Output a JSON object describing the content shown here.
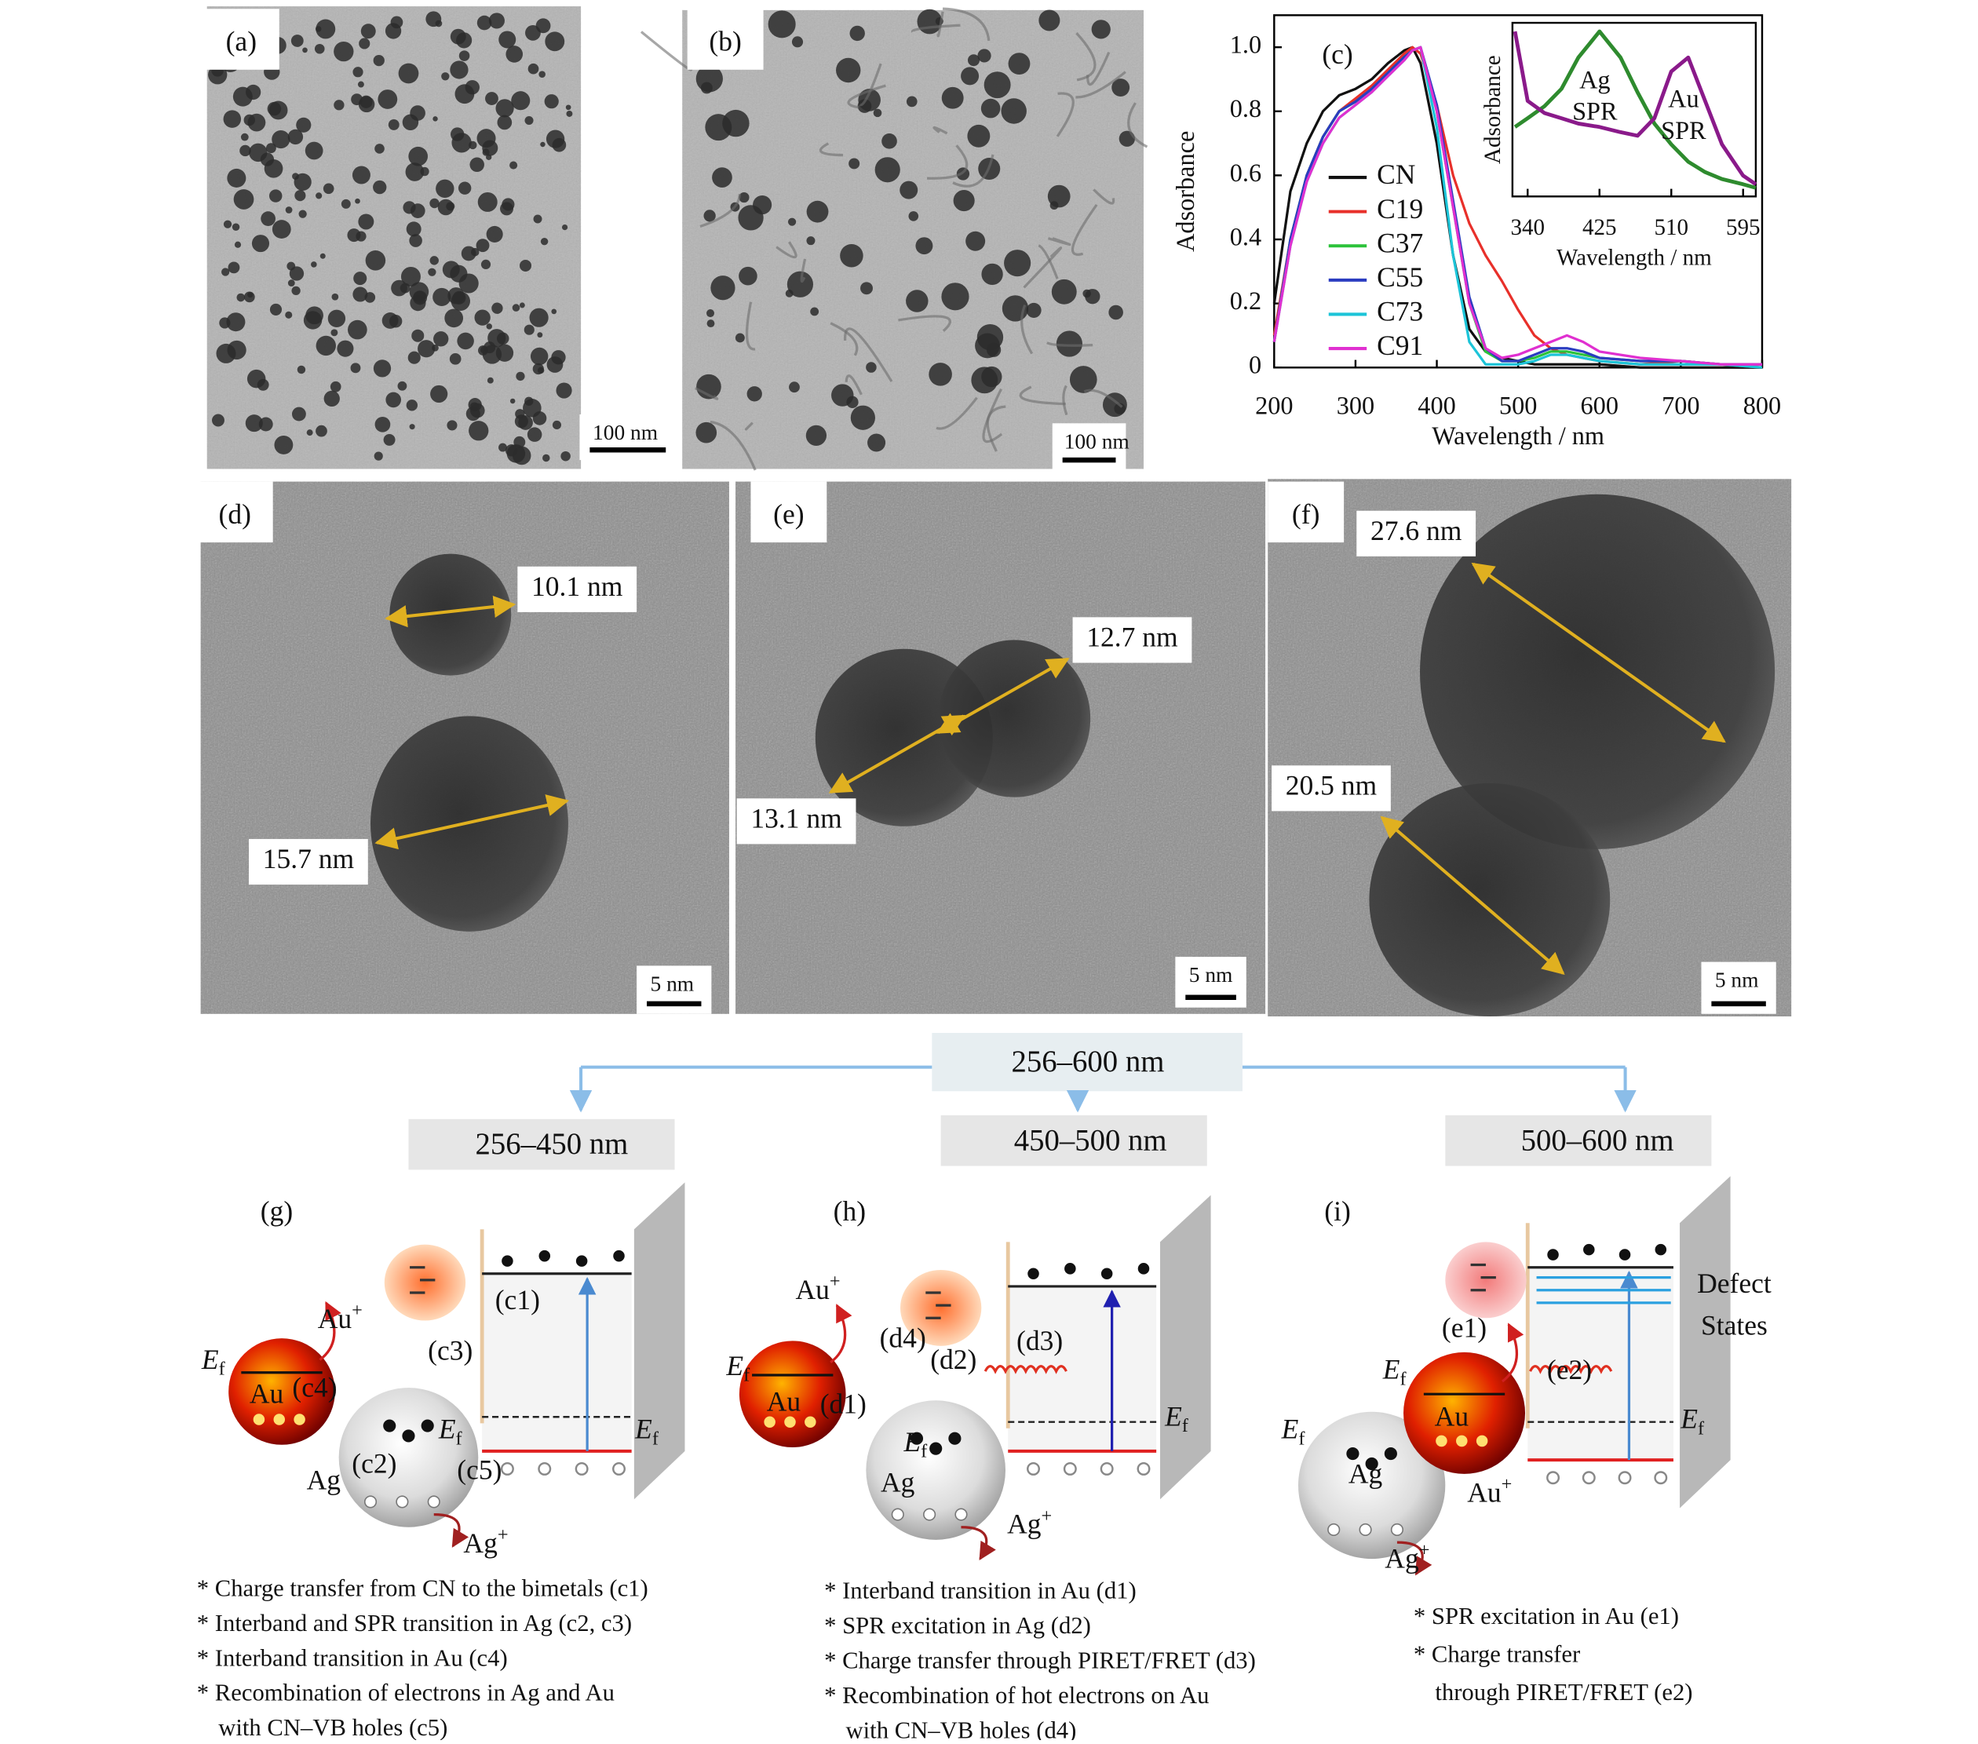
{
  "tem_panels": [
    {
      "label": "(a)",
      "scale_bar": "100 nm"
    },
    {
      "label": "(b)",
      "scale_bar": "100 nm"
    },
    {
      "label": "(d)",
      "scale_bar": "5 nm",
      "sizes": [
        "10.1 nm",
        "15.7 nm"
      ]
    },
    {
      "label": "(e)",
      "scale_bar": "5 nm",
      "sizes": [
        "12.7 nm",
        "13.1 nm"
      ]
    },
    {
      "label": "(f)",
      "scale_bar": "5 nm",
      "sizes": [
        "27.6 nm",
        "20.5 nm"
      ]
    }
  ],
  "chart_data": [
    {
      "type": "line",
      "panel_label": "(c)",
      "x_label": "Wavelength / nm",
      "y_label": "Adsorbance",
      "x": [
        200,
        220,
        240,
        260,
        280,
        300,
        320,
        340,
        360,
        370,
        380,
        400,
        420,
        440,
        460,
        480,
        500,
        520,
        540,
        560,
        580,
        600,
        650,
        700,
        750,
        800
      ],
      "xlim": [
        200,
        800
      ],
      "xticks": [
        200,
        300,
        400,
        500,
        600,
        700,
        800
      ],
      "ylim": [
        0,
        1.1
      ],
      "yticks": [
        0,
        0.2,
        0.4,
        0.6,
        0.8,
        {
          "value": 1,
          "label": "1.0"
        }
      ],
      "series": [
        {
          "name": "CN",
          "color": "#111111",
          "values": [
            0.2,
            0.55,
            0.7,
            0.8,
            0.85,
            0.87,
            0.9,
            0.95,
            0.99,
            1.0,
            0.95,
            0.7,
            0.35,
            0.12,
            0.05,
            0.03,
            0.02,
            0.01,
            0.01,
            0.01,
            0.01,
            0.01,
            0.0,
            0.0,
            0.0,
            0.0
          ]
        },
        {
          "name": "C19",
          "color": "#e8302a",
          "values": [
            0.1,
            0.4,
            0.6,
            0.72,
            0.8,
            0.84,
            0.88,
            0.93,
            0.98,
            1.0,
            0.98,
            0.82,
            0.6,
            0.45,
            0.35,
            0.27,
            0.18,
            0.1,
            0.06,
            0.04,
            0.03,
            0.02,
            0.01,
            0.02,
            0.01,
            0.0
          ]
        },
        {
          "name": "C37",
          "color": "#2cc23a",
          "values": [
            0.08,
            0.4,
            0.6,
            0.72,
            0.8,
            0.83,
            0.87,
            0.92,
            0.97,
            0.99,
            1.0,
            0.8,
            0.5,
            0.2,
            0.05,
            0.02,
            0.02,
            0.03,
            0.05,
            0.05,
            0.04,
            0.03,
            0.02,
            0.02,
            0.01,
            0.01
          ]
        },
        {
          "name": "C55",
          "color": "#2a3cc0",
          "values": [
            0.08,
            0.4,
            0.6,
            0.72,
            0.8,
            0.83,
            0.87,
            0.92,
            0.97,
            0.99,
            1.0,
            0.82,
            0.52,
            0.22,
            0.06,
            0.02,
            0.02,
            0.04,
            0.06,
            0.06,
            0.05,
            0.03,
            0.02,
            0.02,
            0.01,
            0.01
          ]
        },
        {
          "name": "C73",
          "color": "#1cc4d8",
          "values": [
            0.08,
            0.38,
            0.58,
            0.7,
            0.78,
            0.82,
            0.86,
            0.91,
            0.96,
            0.99,
            1.0,
            0.75,
            0.35,
            0.08,
            0.01,
            0.01,
            0.01,
            0.02,
            0.04,
            0.04,
            0.03,
            0.02,
            0.01,
            0.01,
            0.01,
            0.0
          ]
        },
        {
          "name": "C91",
          "color": "#e030d0",
          "values": [
            0.08,
            0.38,
            0.58,
            0.7,
            0.78,
            0.82,
            0.86,
            0.91,
            0.96,
            0.99,
            1.0,
            0.8,
            0.5,
            0.2,
            0.06,
            0.03,
            0.04,
            0.06,
            0.08,
            0.1,
            0.08,
            0.05,
            0.03,
            0.02,
            0.01,
            0.01
          ]
        }
      ]
    },
    {
      "type": "line",
      "x_label": "Wavelength / nm",
      "y_label": "Adsorbance",
      "x": [
        325,
        340,
        360,
        380,
        400,
        425,
        450,
        470,
        490,
        510,
        530,
        550,
        570,
        595,
        610
      ],
      "xlim": [
        322,
        610
      ],
      "xticks": [
        340,
        425,
        510,
        595
      ],
      "ylim": [
        0,
        1
      ],
      "series": [
        {
          "name": "Ag",
          "color": "#2e8b2e",
          "values": [
            0.4,
            0.45,
            0.52,
            0.62,
            0.8,
            0.95,
            0.8,
            0.6,
            0.42,
            0.3,
            0.2,
            0.14,
            0.1,
            0.07,
            0.05
          ]
        },
        {
          "name": "Au",
          "color": "#8a1a8a",
          "values": [
            0.95,
            0.55,
            0.48,
            0.45,
            0.42,
            0.4,
            0.37,
            0.35,
            0.45,
            0.72,
            0.8,
            0.55,
            0.3,
            0.12,
            0.07
          ]
        }
      ],
      "annotations": [
        {
          "lines": [
            "Ag",
            "SPR"
          ],
          "color": "#2e8b2e"
        },
        {
          "lines": [
            "Au",
            "SPR"
          ],
          "color": "#8a1a8a"
        }
      ]
    }
  ],
  "flow": {
    "top": "256–600 nm",
    "ranges": [
      "256–450 nm",
      "450–500 nm",
      "500–600 nm"
    ]
  },
  "schemes": [
    {
      "label": "(g)",
      "items": [
        {
          "text": "Au",
          "sup": "+"
        },
        "(c1)",
        "(c3)",
        {
          "text": "E",
          "sub": "f"
        },
        "Au",
        "(c4)",
        {
          "text": "E",
          "sub": "f"
        },
        {
          "text": "E",
          "sub": "f"
        },
        "(c2)",
        "(c5)",
        "Ag",
        {
          "text": "Ag",
          "sup": "+"
        }
      ],
      "notes": [
        "* Charge transfer from CN to the bimetals (c1)",
        "* Interband and SPR transition in Ag (c2, c3)",
        "* Interband transition in Au (c4)",
        "* Recombination of electrons in Ag and Au",
        "with CN–VB holes (c5)"
      ]
    },
    {
      "label": "(h)",
      "items": [
        {
          "text": "Au",
          "sup": "+"
        },
        "(d4)",
        "(d2)",
        "(d3)",
        {
          "text": "E",
          "sub": "f"
        },
        "Au",
        "(d1)",
        {
          "text": "E",
          "sub": "f"
        },
        {
          "text": "E",
          "sub": "f"
        },
        "Ag",
        {
          "text": "Ag",
          "sup": "+"
        }
      ],
      "notes": [
        "* Interband transition in Au (d1)",
        "* SPR excitation in Ag (d2)",
        "* Charge transfer through PIRET/FRET (d3)",
        "* Recombination of hot electrons on Au",
        "with CN–VB holes (d4)"
      ]
    },
    {
      "label": "(i)",
      "items": [
        "Defect",
        "States",
        "(e1)",
        "(e2)",
        {
          "text": "E",
          "sub": "f"
        },
        "Au",
        {
          "text": "E",
          "sub": "f"
        },
        {
          "text": "E",
          "sub": "f"
        },
        "Ag",
        {
          "text": "Au",
          "sup": "+"
        },
        {
          "text": "Ag",
          "sup": "+"
        }
      ],
      "notes": [
        "* SPR excitation in Au (e1)",
        "* Charge transfer",
        "through PIRET/FRET (e2)"
      ]
    }
  ]
}
